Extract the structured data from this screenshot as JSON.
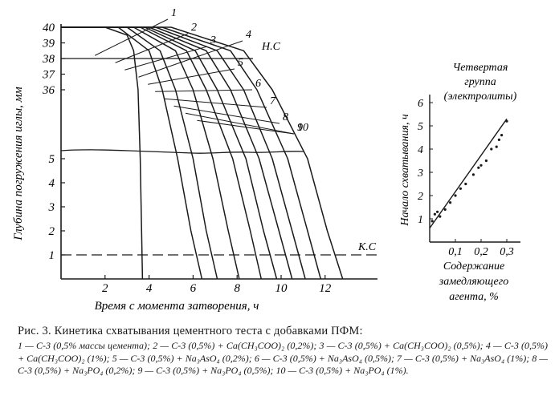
{
  "chart_data": [
    {
      "type": "line",
      "title": "",
      "xlabel": "Время с момента затворения, ч",
      "ylabel": "Глубина погружения иглы, мм",
      "x_ticks": [
        "2",
        "4",
        "6",
        "8",
        "10",
        "12"
      ],
      "y_ticks": [
        "40",
        "39",
        "38",
        "37",
        "36",
        "5",
        "4",
        "3",
        "2",
        "1"
      ],
      "xlim": [
        0,
        14.2
      ],
      "ylim": [
        0,
        40
      ],
      "grid": false,
      "reference_lines": [
        {
          "label": "Н.С",
          "y": 38.5
        },
        {
          "label": "К.С",
          "y": 1
        }
      ],
      "series": [
        {
          "name": "1",
          "x": [
            0,
            2,
            3,
            3.3,
            3.5,
            3.6,
            3.7
          ],
          "y": [
            40,
            40,
            39.5,
            38.5,
            36,
            5,
            0
          ]
        },
        {
          "name": "2",
          "x": [
            0,
            2.6,
            4,
            4.6,
            5.3,
            5.9,
            6.4
          ],
          "y": [
            40,
            40,
            38.5,
            36,
            5,
            2,
            0
          ]
        },
        {
          "name": "3",
          "x": [
            0,
            3,
            4.5,
            5.2,
            6,
            6.6,
            7.1
          ],
          "y": [
            40,
            40,
            38.5,
            36,
            5,
            2,
            0
          ]
        },
        {
          "name": "4",
          "x": [
            0,
            3.3,
            5.2,
            6,
            6.9,
            7.6,
            8.1
          ],
          "y": [
            40,
            40,
            38.5,
            36,
            5,
            2,
            0
          ]
        },
        {
          "name": "5",
          "x": [
            0,
            3.6,
            5.7,
            6.6,
            7.8,
            8.6,
            9.1
          ],
          "y": [
            40,
            40,
            38.5,
            36,
            5,
            2,
            0
          ]
        },
        {
          "name": "6",
          "x": [
            0,
            3.8,
            6.1,
            7.1,
            8.4,
            9.2,
            9.8
          ],
          "y": [
            40,
            40,
            38.5,
            36,
            5,
            2,
            0
          ]
        },
        {
          "name": "7",
          "x": [
            0,
            4,
            6.6,
            7.7,
            9,
            9.9,
            10.5
          ],
          "y": [
            40,
            40,
            38.5,
            36,
            5,
            2,
            0
          ]
        },
        {
          "name": "8",
          "x": [
            0,
            4.3,
            7.1,
            8.3,
            9.6,
            10.5,
            11.1
          ],
          "y": [
            40,
            40,
            38.5,
            36,
            5,
            2,
            0
          ]
        },
        {
          "name": "9",
          "x": [
            0,
            4.6,
            7.7,
            8.9,
            10.3,
            11.2,
            11.8
          ],
          "y": [
            40,
            40,
            38.5,
            36,
            5,
            2,
            0
          ]
        },
        {
          "name": "10",
          "x": [
            0,
            5,
            8.3,
            9.6,
            11.2,
            12.1,
            12.8
          ],
          "y": [
            40,
            40,
            38.5,
            36,
            5,
            2,
            0
          ]
        }
      ]
    },
    {
      "type": "scatter",
      "title": "Четвертая группа (электролиты)",
      "xlabel": "Содержание замедляющего агента, %",
      "ylabel": "Начало схватывания, ч",
      "x_ticks": [
        "0,1",
        "0,2",
        "0,3"
      ],
      "y_ticks": [
        "1",
        "2",
        "3",
        "4",
        "5",
        "6"
      ],
      "xlim": [
        0,
        0.35
      ],
      "ylim": [
        0,
        6.3
      ],
      "grid": false,
      "points_x": [
        0.01,
        0.02,
        0.03,
        0.04,
        0.06,
        0.08,
        0.1,
        0.12,
        0.14,
        0.17,
        0.19,
        0.2,
        0.22,
        0.24,
        0.26,
        0.27,
        0.28,
        0.3
      ],
      "points_y": [
        0.9,
        1.2,
        1.3,
        1.1,
        1.4,
        1.7,
        2.0,
        2.3,
        2.5,
        2.9,
        3.2,
        3.3,
        3.5,
        4.0,
        4.1,
        4.4,
        4.6,
        5.2
      ],
      "fit_line": {
        "x": [
          0,
          0.3
        ],
        "y": [
          0.6,
          5.3
        ]
      }
    }
  ],
  "caption": {
    "title": "Рис. 3. Кинетика схватывания цементного теста с добавками ПФМ:",
    "body": "1 — С-3 (0,5% массы цемента); 2 — С-3 (0,5%) + Ca(CH₃COO)₂ (0,2%); 3 — С-3 (0,5%) + Ca(CH₃COO)₂ (0,5%); 4 — С-3 (0,5%) + Ca(CH₃COO)₂ (1%); 5 — С-3 (0,5%) + Na₃AsO₄ (0,2%); 6 — С-3 (0,5%) + Na₃AsO₄ (0,5%); 7 — С-3 (0,5%) + Na₃AsO₄ (1%); 8 — С-3 (0,5%) + Na₃PO₄ (0,2%); 9 — С-3 (0,5%) + Na₃PO₄ (0,5%); 10 — С-3 (0,5%) + Na₃PO₄ (1%)."
  }
}
